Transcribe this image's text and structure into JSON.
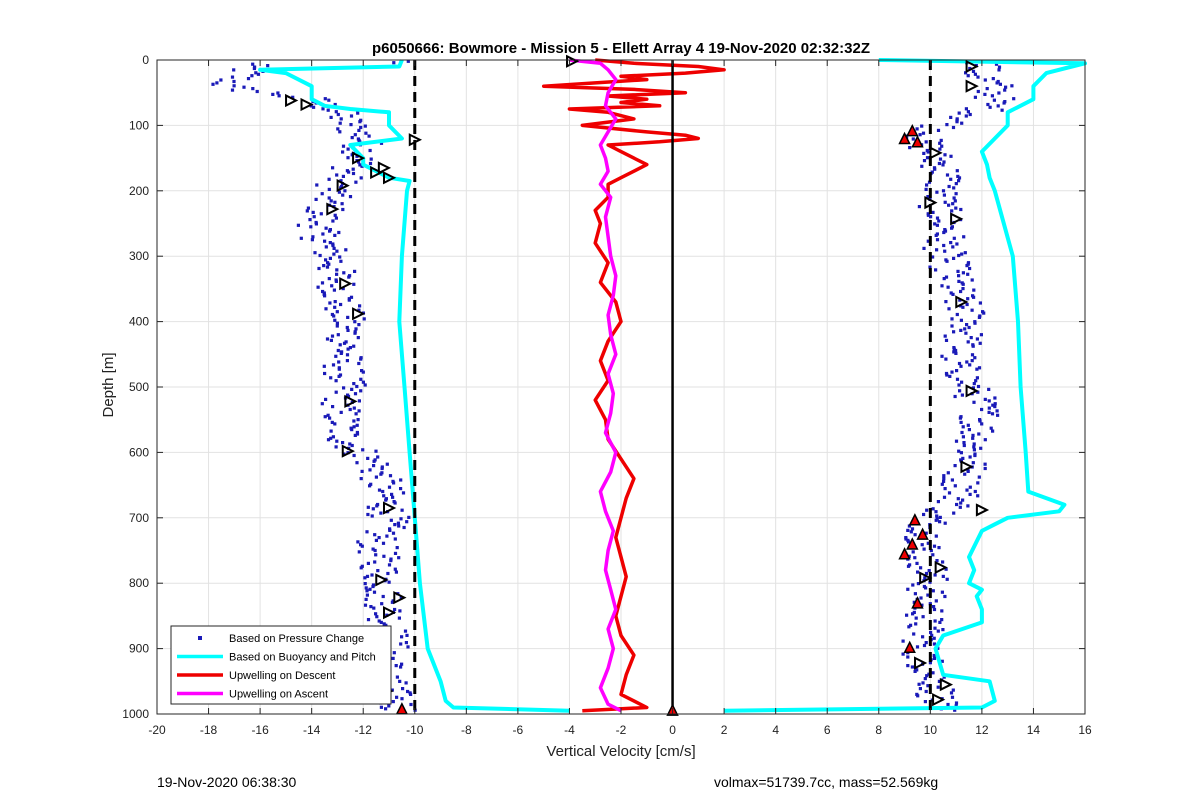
{
  "chart_data": {
    "type": "line",
    "title": "p6050666: Bowmore - Mission 5 - Ellett Array 4 19-Nov-2020 02:32:32Z",
    "xlabel": "Vertical Velocity [cm/s]",
    "ylabel": "Depth [m]",
    "xlim": [
      -20,
      16
    ],
    "ylim": [
      1000,
      0
    ],
    "y_reversed": true,
    "grid": true,
    "xticks": [
      "-20",
      "-18",
      "-16",
      "-14",
      "-12",
      "-10",
      "-8",
      "-6",
      "-4",
      "-2",
      "0",
      "2",
      "4",
      "6",
      "8",
      "10",
      "12",
      "14",
      "16"
    ],
    "yticks": [
      "0",
      "100",
      "200",
      "300",
      "400",
      "500",
      "600",
      "700",
      "800",
      "900",
      "1000"
    ],
    "reference_lines": [
      {
        "x": -10,
        "style": "dashed"
      },
      {
        "x": 10,
        "style": "dashed"
      },
      {
        "x": 0,
        "style": "solid"
      }
    ],
    "legend_position": "bottom-left",
    "series": [
      {
        "name": "Based on Pressure Change",
        "style": "dots",
        "color": "#1a1ab8",
        "descent": {
          "depth": [
            5,
            20,
            40,
            60,
            80,
            100,
            120,
            140,
            160,
            180,
            200,
            230,
            260,
            300,
            340,
            380,
            420,
            460,
            500,
            540,
            580,
            620,
            660,
            700,
            740,
            780,
            820,
            860,
            900,
            940,
            980,
            995
          ],
          "velocity": [
            -16.5,
            -16.5,
            -17.5,
            -14.0,
            -13.0,
            -12.5,
            -12.0,
            -12.0,
            -12.3,
            -12.8,
            -13.2,
            -13.5,
            -13.8,
            -13.2,
            -13.0,
            -12.8,
            -12.6,
            -12.8,
            -12.7,
            -12.9,
            -12.7,
            -11.5,
            -11.2,
            -11.0,
            -11.5,
            -11.3,
            -11.2,
            -11.0,
            -11.0,
            -11.2,
            -10.8,
            -10.5
          ]
        },
        "ascent": {
          "depth": [
            995,
            980,
            960,
            940,
            920,
            900,
            880,
            860,
            840,
            820,
            800,
            780,
            760,
            740,
            720,
            700,
            680,
            660,
            640,
            620,
            600,
            580,
            560,
            540,
            520,
            500,
            480,
            460,
            440,
            420,
            400,
            380,
            360,
            340,
            320,
            300,
            280,
            260,
            240,
            220,
            200,
            180,
            160,
            140,
            120,
            100,
            80,
            60,
            40,
            20,
            5
          ],
          "velocity": [
            10.3,
            10.2,
            10.3,
            10.1,
            9.8,
            9.6,
            9.8,
            9.7,
            9.9,
            9.8,
            9.9,
            10.0,
            9.7,
            9.8,
            9.9,
            10.0,
            11.0,
            11.3,
            11.2,
            11.5,
            11.6,
            11.8,
            11.9,
            12.0,
            11.8,
            11.5,
            11.3,
            11.0,
            11.2,
            11.3,
            11.6,
            11.3,
            11.0,
            10.9,
            10.8,
            10.6,
            10.5,
            10.7,
            10.5,
            10.3,
            10.4,
            10.6,
            10.4,
            10.0,
            9.6,
            10.5,
            12.0,
            12.5,
            12.5,
            11.8,
            12.2
          ]
        }
      },
      {
        "name": "Based on Buoyancy and Pitch",
        "style": "line",
        "color": "#00ffff",
        "descent": {
          "depth": [
            0,
            10,
            15,
            20,
            40,
            60,
            70,
            75,
            80,
            100,
            120,
            130,
            150,
            160,
            180,
            185,
            200,
            300,
            400,
            500,
            600,
            700,
            800,
            900,
            950,
            980,
            990,
            995
          ],
          "velocity": [
            -10.5,
            -10.6,
            -16.0,
            -15.0,
            -14.0,
            -14.0,
            -13.5,
            -12.5,
            -11.0,
            -11.0,
            -10.5,
            -12.5,
            -12.0,
            -12.0,
            -11.0,
            -10.2,
            -10.3,
            -10.5,
            -10.6,
            -10.4,
            -10.2,
            -10.0,
            -9.8,
            -9.5,
            -9.0,
            -8.8,
            -8.5,
            -4.0
          ]
        },
        "ascent": {
          "depth": [
            995,
            990,
            980,
            950,
            940,
            900,
            880,
            860,
            840,
            820,
            810,
            800,
            780,
            760,
            720,
            710,
            700,
            690,
            680,
            660,
            600,
            500,
            400,
            300,
            200,
            180,
            160,
            140,
            120,
            100,
            80,
            60,
            40,
            20,
            10,
            5,
            0
          ],
          "velocity": [
            2.0,
            12.0,
            12.5,
            12.3,
            10.5,
            10.2,
            10.5,
            12.0,
            12.0,
            11.8,
            12.0,
            11.5,
            11.7,
            11.5,
            12.0,
            12.5,
            13.0,
            15.0,
            15.2,
            13.8,
            13.7,
            13.5,
            13.4,
            13.2,
            12.5,
            12.3,
            12.2,
            12.0,
            12.5,
            13.0,
            13.0,
            14.0,
            14.0,
            14.5,
            15.5,
            16.0,
            8.0
          ]
        }
      },
      {
        "name": "Upwelling on Descent",
        "style": "line",
        "color": "#ee0000",
        "points": {
          "depth": [
            0,
            5,
            10,
            15,
            20,
            25,
            30,
            35,
            40,
            45,
            50,
            55,
            60,
            65,
            70,
            75,
            80,
            90,
            100,
            110,
            115,
            120,
            125,
            130,
            140,
            150,
            160,
            170,
            180,
            190,
            200,
            210,
            230,
            250,
            280,
            310,
            340,
            370,
            400,
            430,
            460,
            490,
            520,
            550,
            580,
            610,
            640,
            670,
            700,
            730,
            760,
            790,
            820,
            850,
            880,
            910,
            940,
            970,
            990,
            995
          ],
          "velocity": [
            -3.0,
            -1.5,
            1.0,
            2.0,
            0.5,
            -2.0,
            -1.0,
            -3.0,
            -5.0,
            -1.5,
            0.5,
            -2.5,
            -1.0,
            -2.0,
            -0.5,
            -4.0,
            -2.5,
            -1.5,
            -3.5,
            -1.0,
            0.5,
            1.0,
            -0.5,
            -2.5,
            -2.0,
            -1.5,
            -1.0,
            -1.5,
            -2.0,
            -2.5,
            -2.5,
            -2.5,
            -3.0,
            -2.8,
            -3.0,
            -2.5,
            -2.8,
            -2.2,
            -2.0,
            -2.5,
            -2.8,
            -2.5,
            -3.0,
            -2.6,
            -2.5,
            -2.0,
            -1.5,
            -1.8,
            -2.0,
            -2.2,
            -2.0,
            -1.8,
            -2.0,
            -2.2,
            -2.0,
            -1.5,
            -1.8,
            -2.0,
            -1.0,
            -3.5
          ]
        }
      },
      {
        "name": "Upwelling on Ascent",
        "style": "line",
        "color": "#ff00ff",
        "points": {
          "depth": [
            995,
            985,
            960,
            930,
            900,
            870,
            840,
            810,
            780,
            750,
            720,
            690,
            660,
            630,
            600,
            570,
            540,
            510,
            480,
            450,
            420,
            390,
            360,
            330,
            300,
            270,
            240,
            210,
            190,
            170,
            150,
            130,
            110,
            90,
            70,
            50,
            30,
            15,
            5,
            0
          ],
          "velocity": [
            -2.0,
            -2.5,
            -2.8,
            -2.5,
            -2.3,
            -2.5,
            -2.2,
            -2.4,
            -2.6,
            -2.5,
            -2.3,
            -2.6,
            -2.8,
            -2.4,
            -2.2,
            -2.6,
            -2.4,
            -2.3,
            -2.5,
            -2.2,
            -2.4,
            -2.5,
            -2.3,
            -2.2,
            -2.4,
            -2.5,
            -2.6,
            -2.4,
            -2.8,
            -2.5,
            -2.6,
            -2.8,
            -2.5,
            -2.2,
            -2.6,
            -2.5,
            -2.2,
            -2.5,
            -2.8,
            -4.0
          ]
        }
      }
    ],
    "markers": {
      "open_triangles": [
        {
          "x": -3.9,
          "y": 2
        },
        {
          "x": 11.6,
          "y": 10
        },
        {
          "x": 11.6,
          "y": 40
        },
        {
          "x": -14.8,
          "y": 62
        },
        {
          "x": -14.2,
          "y": 68
        },
        {
          "x": -10.0,
          "y": 122
        },
        {
          "x": 10.2,
          "y": 142
        },
        {
          "x": -12.2,
          "y": 150
        },
        {
          "x": -11.2,
          "y": 165
        },
        {
          "x": -11.5,
          "y": 172
        },
        {
          "x": -11.0,
          "y": 180
        },
        {
          "x": -12.8,
          "y": 192
        },
        {
          "x": -13.2,
          "y": 228
        },
        {
          "x": 10.0,
          "y": 218
        },
        {
          "x": 11.0,
          "y": 243
        },
        {
          "x": -12.7,
          "y": 342
        },
        {
          "x": 11.2,
          "y": 370
        },
        {
          "x": -12.2,
          "y": 388
        },
        {
          "x": 11.6,
          "y": 506
        },
        {
          "x": -12.5,
          "y": 522
        },
        {
          "x": -12.6,
          "y": 598
        },
        {
          "x": 11.4,
          "y": 622
        },
        {
          "x": -11.0,
          "y": 685
        },
        {
          "x": 12.0,
          "y": 688
        },
        {
          "x": 10.4,
          "y": 776
        },
        {
          "x": -11.3,
          "y": 795
        },
        {
          "x": 9.8,
          "y": 792
        },
        {
          "x": -10.6,
          "y": 822
        },
        {
          "x": -11.0,
          "y": 845
        },
        {
          "x": -11.5,
          "y": 875
        },
        {
          "x": 9.6,
          "y": 922
        },
        {
          "x": 10.6,
          "y": 955
        },
        {
          "x": -11.1,
          "y": 965
        },
        {
          "x": 10.3,
          "y": 978
        }
      ],
      "filled_triangles": [
        {
          "x": 9.3,
          "y": 108
        },
        {
          "x": 9.0,
          "y": 120
        },
        {
          "x": 9.5,
          "y": 125
        },
        {
          "x": 9.4,
          "y": 703
        },
        {
          "x": 9.7,
          "y": 725
        },
        {
          "x": 9.3,
          "y": 740
        },
        {
          "x": 9.0,
          "y": 755
        },
        {
          "x": 9.5,
          "y": 830
        },
        {
          "x": 9.2,
          "y": 898
        },
        {
          "x": -10.5,
          "y": 992
        },
        {
          "x": 0.0,
          "y": 994
        }
      ]
    }
  },
  "footer": {
    "timestamp": "19-Nov-2020 06:38:30",
    "info": "volmax=51739.7cc, mass=52.569kg"
  },
  "colors": {
    "pressure": "#1a1ab8",
    "buoyancy": "#00ffff",
    "descent": "#ee0000",
    "ascent": "#ff00ff",
    "grid": "#e2e2e2"
  }
}
